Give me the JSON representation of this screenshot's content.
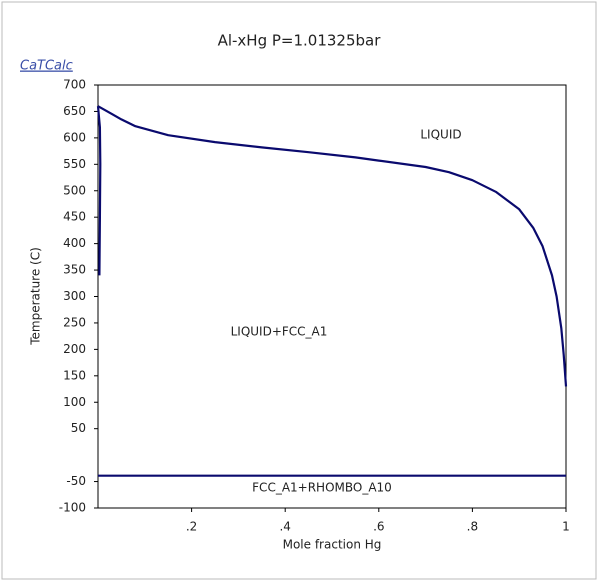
{
  "chart_data": {
    "type": "line",
    "title": "Al-xHg P=1.01325bar",
    "brand": "CaTCalc",
    "xlabel": "Mole fraction Hg",
    "ylabel": "Temperature (C)",
    "xlim": [
      0,
      1
    ],
    "ylim": [
      -100,
      700
    ],
    "xticks": [
      {
        "value": 0.2,
        "label": ".2"
      },
      {
        "value": 0.4,
        "label": ".4"
      },
      {
        "value": 0.6,
        "label": ".6"
      },
      {
        "value": 0.8,
        "label": ".8"
      },
      1
    ],
    "yticks": [
      700,
      650,
      600,
      550,
      500,
      450,
      400,
      350,
      300,
      250,
      200,
      150,
      100,
      50,
      -50,
      -100
    ],
    "series": [
      {
        "color": "#0a0a6e",
        "x": [
          0,
          0.01,
          0.03,
          0.05,
          0.08,
          0.15,
          0.25,
          0.35,
          0.45,
          0.55,
          0.6,
          0.7,
          0.75,
          0.8,
          0.85,
          0.9,
          0.93,
          0.95,
          0.97,
          0.98,
          0.99,
          0.995,
          1
        ],
        "values": [
          660,
          655,
          645,
          635,
          622,
          605,
          592,
          582,
          573,
          563,
          557,
          545,
          535,
          520,
          498,
          465,
          430,
          395,
          340,
          300,
          240,
          190,
          130
        ]
      },
      {
        "color": "#0a0a6e",
        "x": [
          0,
          0.004,
          0.005,
          0.004,
          0.003
        ],
        "values": [
          660,
          620,
          550,
          450,
          340
        ]
      },
      {
        "color": "#0a0a6e",
        "x": [
          0,
          1
        ],
        "values": [
          -39,
          -39
        ]
      }
    ],
    "annotations": [
      "LIQUID",
      "LIQUID+FCC_A1",
      "FCC_A1+RHOMBO_A10"
    ]
  }
}
